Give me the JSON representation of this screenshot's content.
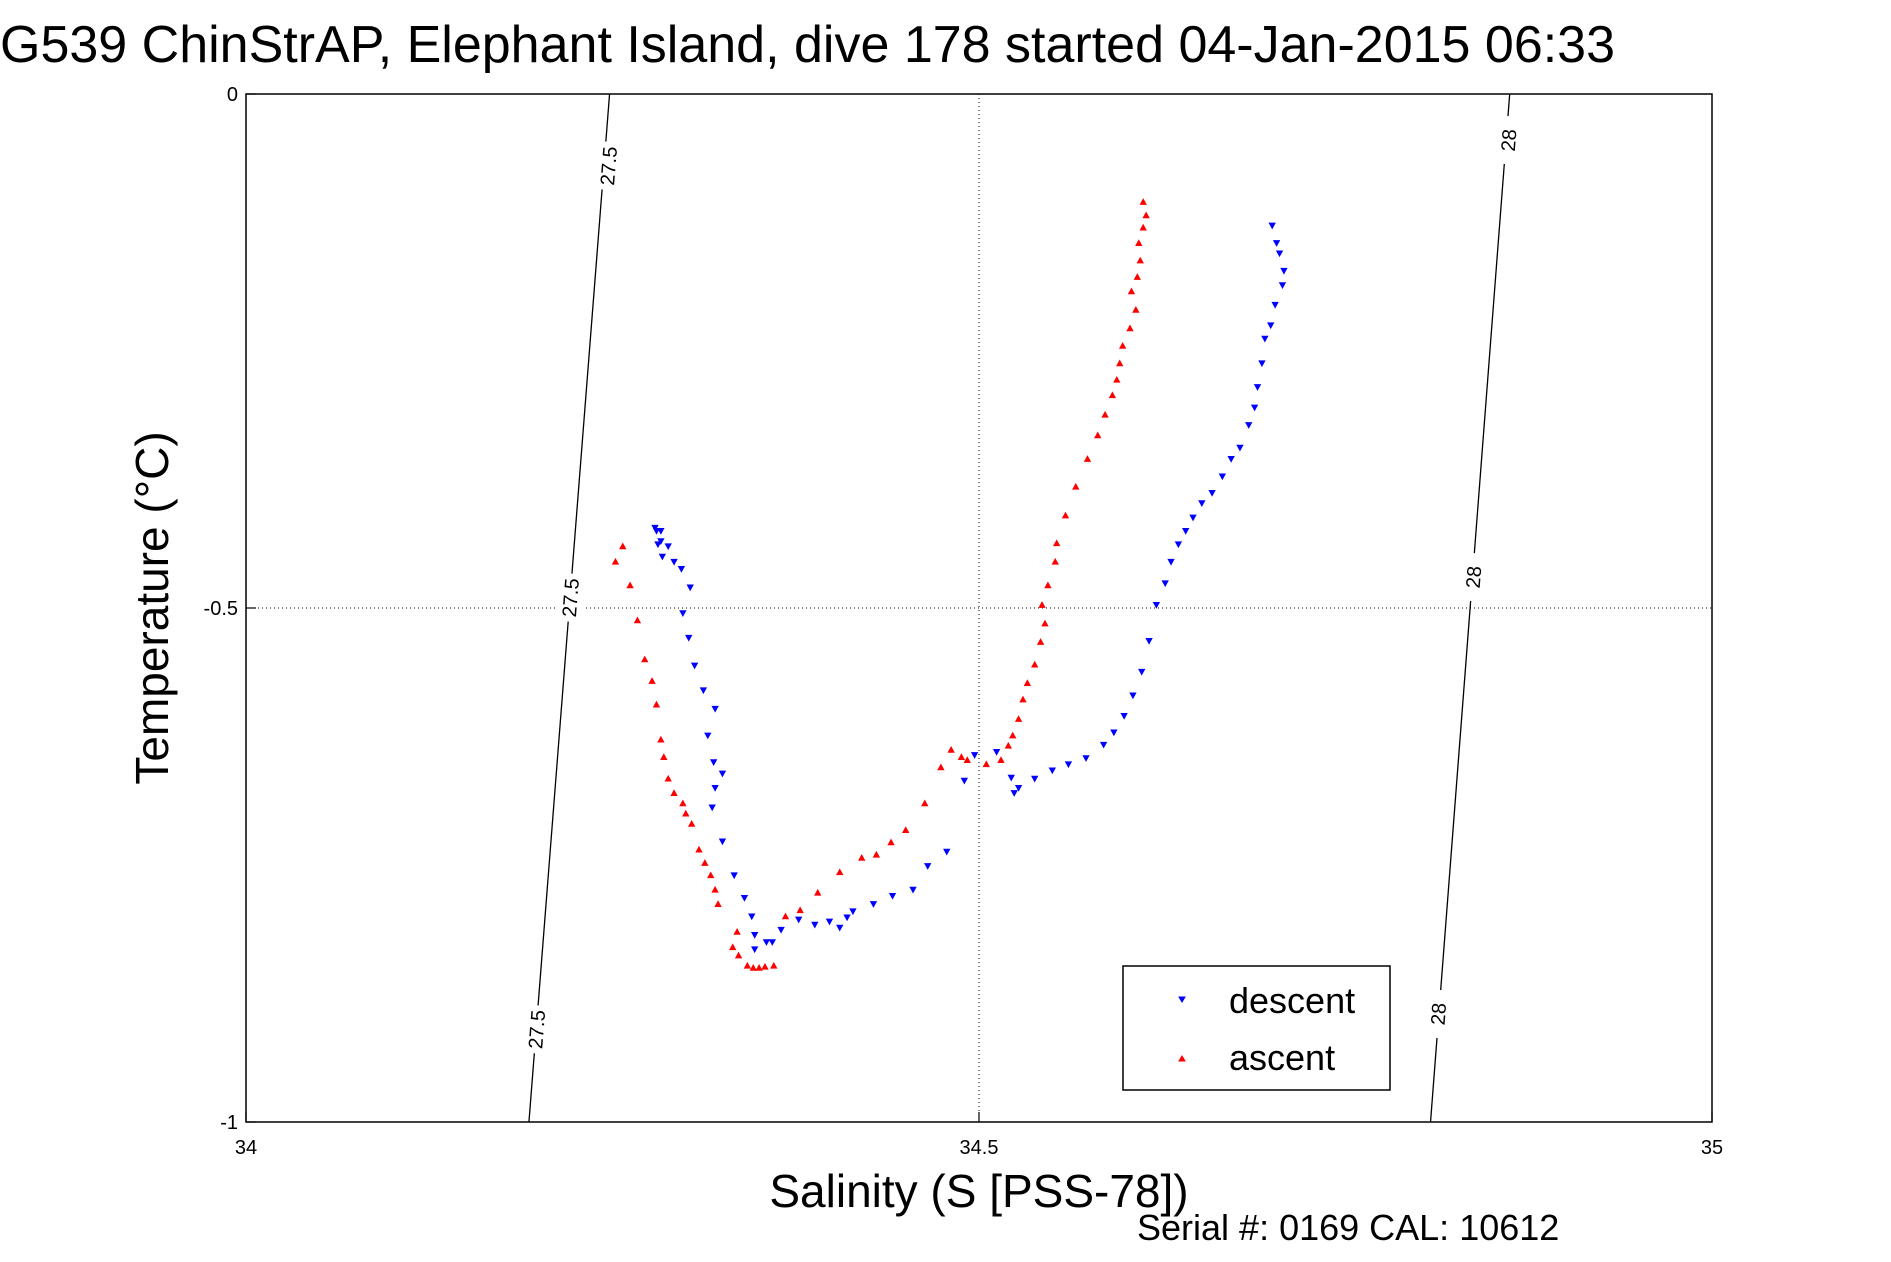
{
  "chart_data": {
    "type": "scatter",
    "title": "G539 ChinStrAP, Elephant Island, dive 178 started 04-Jan-2015 06:33",
    "xlabel": "Salinity (S [PSS-78])",
    "ylabel": "Temperature (°C)",
    "xlim": [
      34,
      35
    ],
    "ylim": [
      -1,
      0
    ],
    "xticks": [
      34,
      34.5,
      35
    ],
    "xtick_labels": [
      "34",
      "34.5",
      "35"
    ],
    "yticks": [
      -1,
      -0.5,
      0
    ],
    "ytick_labels": [
      "-1",
      "-0.5",
      "0"
    ],
    "grid": true,
    "legend_position": "bottom-right",
    "footer": "Serial #: 0169 CAL: 10612",
    "contours": [
      {
        "label": "27.5",
        "line": [
          [
            34.193,
            -1.0
          ],
          [
            34.248,
            0.0
          ]
        ],
        "labels_at": [
          [
            34.248,
            -0.07
          ],
          [
            34.222,
            -0.49
          ],
          [
            34.199,
            -0.91
          ]
        ]
      },
      {
        "label": "28",
        "line": [
          [
            34.808,
            -1.0
          ],
          [
            34.862,
            0.0
          ]
        ],
        "labels_at": [
          [
            34.862,
            -0.045
          ],
          [
            34.838,
            -0.47
          ],
          [
            34.814,
            -0.895
          ]
        ]
      }
    ],
    "series": [
      {
        "name": "descent",
        "marker": "triangle-down",
        "color": "#0000ff",
        "x": [
          34.7,
          34.703,
          34.705,
          34.708,
          34.707,
          34.702,
          34.699,
          34.695,
          34.693,
          34.69,
          34.688,
          34.684,
          34.678,
          34.672,
          34.666,
          34.659,
          34.652,
          34.646,
          34.641,
          34.636,
          34.631,
          34.627,
          34.621,
          34.616,
          34.611,
          34.605,
          34.599,
          34.592,
          34.585,
          34.573,
          34.561,
          34.55,
          34.538,
          34.527,
          34.524,
          34.522,
          34.512,
          34.497,
          34.49,
          34.478,
          34.465,
          34.455,
          34.441,
          34.428,
          34.414,
          34.41,
          34.405,
          34.398,
          34.388,
          34.377,
          34.365,
          34.355,
          34.347,
          34.359,
          34.347,
          34.345,
          34.34,
          34.333,
          34.325,
          34.318,
          34.32,
          34.325,
          34.319,
          34.315,
          34.32,
          34.312,
          34.306,
          34.302,
          34.298,
          34.303,
          34.297,
          34.292,
          34.284,
          34.283,
          34.281,
          34.28,
          34.279,
          34.283,
          34.288
        ],
        "y": [
          -0.128,
          -0.145,
          -0.155,
          -0.172,
          -0.186,
          -0.205,
          -0.225,
          -0.238,
          -0.262,
          -0.285,
          -0.305,
          -0.322,
          -0.344,
          -0.355,
          -0.372,
          -0.388,
          -0.398,
          -0.412,
          -0.425,
          -0.438,
          -0.455,
          -0.476,
          -0.497,
          -0.532,
          -0.562,
          -0.585,
          -0.605,
          -0.621,
          -0.633,
          -0.646,
          -0.652,
          -0.658,
          -0.666,
          -0.675,
          -0.68,
          -0.665,
          -0.64,
          -0.643,
          -0.668,
          -0.737,
          -0.751,
          -0.774,
          -0.78,
          -0.788,
          -0.795,
          -0.801,
          -0.811,
          -0.805,
          -0.808,
          -0.803,
          -0.813,
          -0.825,
          -0.832,
          -0.825,
          -0.818,
          -0.8,
          -0.782,
          -0.76,
          -0.727,
          -0.694,
          -0.675,
          -0.661,
          -0.65,
          -0.624,
          -0.598,
          -0.58,
          -0.556,
          -0.529,
          -0.505,
          -0.48,
          -0.462,
          -0.455,
          -0.45,
          -0.435,
          -0.438,
          -0.425,
          -0.422,
          -0.425,
          -0.44
        ]
      },
      {
        "name": "ascent",
        "marker": "triangle-up",
        "color": "#ff0000",
        "x": [
          34.612,
          34.614,
          34.612,
          34.609,
          34.61,
          34.608,
          34.604,
          34.607,
          34.603,
          34.598,
          34.596,
          34.594,
          34.591,
          34.586,
          34.581,
          34.574,
          34.566,
          34.559,
          34.553,
          34.552,
          34.547,
          34.543,
          34.545,
          34.542,
          34.538,
          34.533,
          34.53,
          34.527,
          34.523,
          34.52,
          34.515,
          34.505,
          34.492,
          34.488,
          34.481,
          34.474,
          34.463,
          34.45,
          34.44,
          34.43,
          34.42,
          34.405,
          34.39,
          34.378,
          34.368,
          34.36,
          34.354,
          34.35,
          34.346,
          34.342,
          34.336,
          34.332,
          34.335,
          34.322,
          34.32,
          34.317,
          34.313,
          34.309,
          34.304,
          34.3,
          34.298,
          34.292,
          34.288,
          34.285,
          34.283,
          34.28,
          34.277,
          34.272,
          34.267,
          34.262,
          34.257,
          34.252
        ],
        "y": [
          -0.105,
          -0.118,
          -0.13,
          -0.145,
          -0.162,
          -0.178,
          -0.192,
          -0.21,
          -0.228,
          -0.245,
          -0.262,
          -0.278,
          -0.293,
          -0.312,
          -0.332,
          -0.355,
          -0.382,
          -0.41,
          -0.437,
          -0.455,
          -0.478,
          -0.497,
          -0.515,
          -0.533,
          -0.555,
          -0.573,
          -0.589,
          -0.608,
          -0.624,
          -0.634,
          -0.648,
          -0.652,
          -0.648,
          -0.645,
          -0.638,
          -0.655,
          -0.69,
          -0.716,
          -0.728,
          -0.74,
          -0.743,
          -0.757,
          -0.777,
          -0.794,
          -0.8,
          -0.848,
          -0.849,
          -0.85,
          -0.85,
          -0.848,
          -0.838,
          -0.83,
          -0.815,
          -0.788,
          -0.774,
          -0.76,
          -0.748,
          -0.735,
          -0.71,
          -0.7,
          -0.69,
          -0.68,
          -0.666,
          -0.645,
          -0.628,
          -0.594,
          -0.571,
          -0.55,
          -0.512,
          -0.478,
          -0.44,
          -0.455
        ]
      }
    ]
  }
}
